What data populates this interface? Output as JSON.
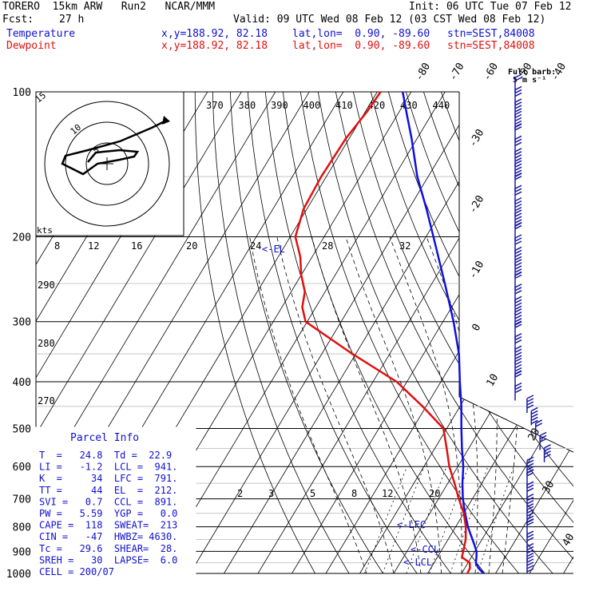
{
  "header": {
    "model": "TORERO  15km ARW   Run2   NCAR/MMM",
    "init": "Init: 06 UTC Tue 07 Feb 12",
    "fcst_label": "Fcst:",
    "fcst_value": "27 h",
    "valid": "Valid: 09 UTC Wed 08 Feb 12 (03 CST Wed 08 Feb 12)",
    "temp_line": {
      "label": "Temperature",
      "xy": "x,y=188.92, 82.18",
      "latlon": "lat,lon=  0.90, -89.60",
      "stn": "stn=SEST,84008"
    },
    "dew_line": {
      "label": "Dewpoint",
      "xy": "x,y=188.92, 82.18",
      "latlon": "lat,lon=  0.90, -89.60",
      "stn": "stn=SEST,84008"
    }
  },
  "barb_legend": {
    "line1": "Full barb:",
    "line2": "5 m s⁻¹"
  },
  "hodograph": {
    "units": "kts",
    "rings": [
      "5",
      "10",
      "15"
    ]
  },
  "parcel_info": {
    "title": "Parcel Info",
    "rows": [
      "T  =   24.8  Td =  22.9",
      "LI =   -1.2  LCL =  941.",
      "K  =     34  LFC =  791.",
      "TT =     44  EL  =  212.",
      "SVI =   0.7  CCL =  891.",
      "PW =   5.59  YGP =   0.0",
      "CAPE =  118  SWEAT=  213",
      "CIN =   -47  HWBZ= 4630.",
      "Tc =   29.6  SHEAR=  28.",
      "SREH =   30  LAPSE=  6.0",
      "CELL = 200/07"
    ]
  },
  "labels": {
    "el": "<-EL",
    "lfc": "<-LFC",
    "ccl": "<-CCL",
    "lcl": "<-LCL",
    "mix_top": [
      "8",
      "12",
      "16",
      "20",
      "24",
      "28",
      "32"
    ],
    "mix_bottom": [
      "2",
      "3",
      "5",
      "8",
      "12",
      "20"
    ],
    "theta": [
      "370",
      "380",
      "390",
      "400",
      "410",
      "420",
      "430",
      "440"
    ],
    "theta_side": [
      "290",
      "280",
      "270"
    ]
  },
  "chart_data": {
    "type": "line",
    "title": "",
    "xlabel": "",
    "ylabel": "",
    "y_axis": {
      "scale": "log",
      "ticks": [
        100,
        200,
        300,
        400,
        500,
        600,
        700,
        800,
        900,
        1000
      ]
    },
    "x_axis": {
      "skewed_isotherm_ticks": [
        -80,
        -70,
        -60,
        -50,
        -40,
        -30,
        -20,
        -10,
        0,
        10,
        20,
        30,
        40
      ]
    },
    "series": [
      {
        "name": "Temperature",
        "color": "#1010e0",
        "points": [
          [
            1000,
            26.5
          ],
          [
            975,
            24.0
          ],
          [
            950,
            22.3
          ],
          [
            925,
            21.5
          ],
          [
            900,
            20.5
          ],
          [
            875,
            18.9
          ],
          [
            850,
            17.2
          ],
          [
            825,
            15.4
          ],
          [
            800,
            13.6
          ],
          [
            775,
            12.0
          ],
          [
            750,
            10.4
          ],
          [
            725,
            8.8
          ],
          [
            700,
            7.2
          ],
          [
            650,
            4.3
          ],
          [
            600,
            1.6
          ],
          [
            550,
            -2.0
          ],
          [
            500,
            -5.7
          ],
          [
            450,
            -9.6
          ],
          [
            400,
            -14.4
          ],
          [
            350,
            -19.6
          ],
          [
            300,
            -26.9
          ],
          [
            250,
            -36.2
          ],
          [
            200,
            -47.8
          ],
          [
            175,
            -54.8
          ],
          [
            150,
            -63.2
          ],
          [
            125,
            -71.6
          ],
          [
            112,
            -77.0
          ],
          [
            100,
            -82.5
          ]
        ]
      },
      {
        "name": "Dewpoint",
        "color": "#e01010",
        "points": [
          [
            1000,
            21.7
          ],
          [
            975,
            21.5
          ],
          [
            950,
            20.5
          ],
          [
            925,
            17.2
          ],
          [
            900,
            16.6
          ],
          [
            850,
            15.2
          ],
          [
            800,
            13.0
          ],
          [
            750,
            10.0
          ],
          [
            700,
            6.0
          ],
          [
            650,
            2.0
          ],
          [
            600,
            -2.5
          ],
          [
            550,
            -6.5
          ],
          [
            500,
            -11.0
          ],
          [
            450,
            -21.0
          ],
          [
            400,
            -33.0
          ],
          [
            350,
            -51.0
          ],
          [
            300,
            -70.5
          ],
          [
            280,
            -74.0
          ],
          [
            260,
            -76.0
          ],
          [
            240,
            -80.0
          ],
          [
            220,
            -83.5
          ],
          [
            200,
            -88.5
          ],
          [
            175,
            -91.0
          ],
          [
            150,
            -91.5
          ],
          [
            125,
            -91.0
          ],
          [
            110,
            -89.5
          ],
          [
            100,
            -89.0
          ]
        ]
      }
    ],
    "wind_barbs": {
      "units": "m s-1",
      "count": 40
    }
  }
}
